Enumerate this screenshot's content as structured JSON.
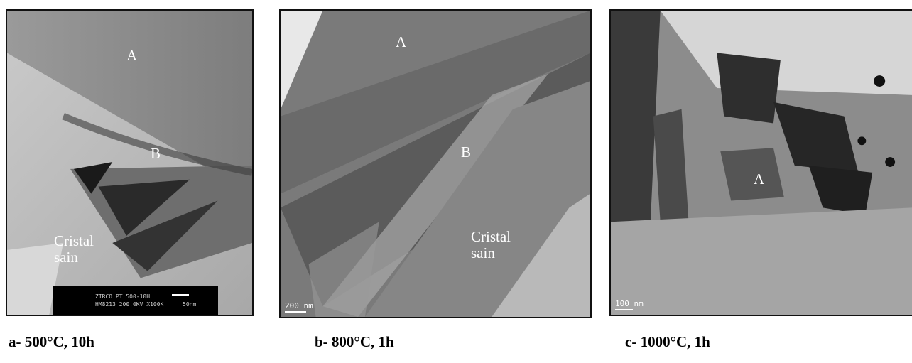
{
  "panels": [
    {
      "id": "a",
      "labels": {
        "region_a": "A",
        "region_b": "B",
        "crystal": "Cristal\nsain"
      },
      "info_line1": "ZIRCO PT 500-10H",
      "info_line2": "HM8213 200.0KV X100K",
      "info_scale": "50nm",
      "caption": "a- 500°C, 10h"
    },
    {
      "id": "b",
      "labels": {
        "region_a": "A",
        "region_b": "B",
        "crystal": "Cristal\nsain"
      },
      "scale": "200 nm",
      "caption": "b- 800°C, 1h"
    },
    {
      "id": "c",
      "labels": {
        "region_a": "A"
      },
      "scale": "100 nm",
      "caption": "c- 1000°C, 1h"
    }
  ]
}
